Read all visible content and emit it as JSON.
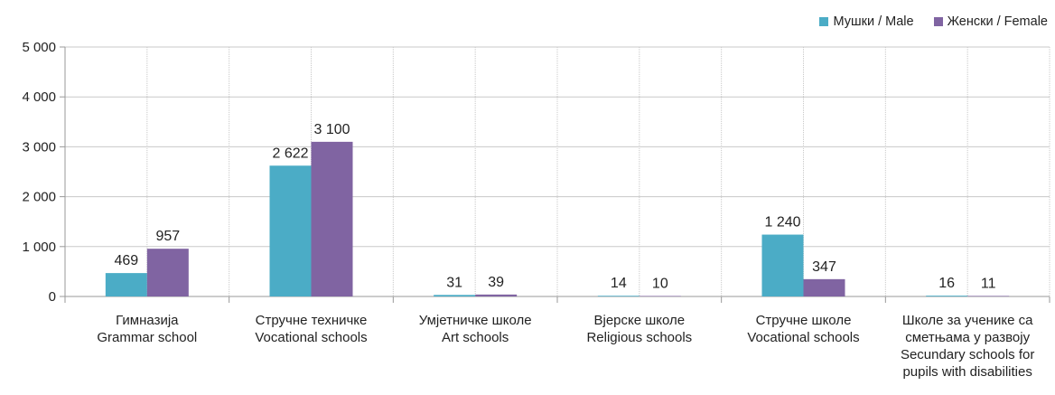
{
  "chart_data": {
    "type": "bar",
    "title": "",
    "xlabel": "",
    "ylabel": "",
    "ylim": [
      0,
      5000
    ],
    "yticks": [
      0,
      1000,
      2000,
      3000,
      4000,
      5000
    ],
    "ytick_labels": [
      "0",
      "1 000",
      "2 000",
      "3 000",
      "4 000",
      "5 000"
    ],
    "grid": true,
    "legend_position": "top-right",
    "categories": [
      [
        "Гимназија",
        "Grammar school"
      ],
      [
        "Стручне техничке",
        "Vocational schools"
      ],
      [
        "Умјетничке школе",
        "Art schools"
      ],
      [
        "Вјерске школе",
        "Religious schools"
      ],
      [
        "Стручне школе",
        "Vocational schools"
      ],
      [
        "Школе за ученике са",
        "сметњама у развоју",
        "Secundary schools for",
        "pupils with disabilities"
      ]
    ],
    "series": [
      {
        "name": "Мушки / Male",
        "color": "#4bacc6",
        "values": [
          469,
          2622,
          31,
          14,
          1240,
          16
        ],
        "labels": [
          "469",
          "2 622",
          "31",
          "14",
          "1 240",
          "16"
        ]
      },
      {
        "name": "Женски / Female",
        "color": "#8064a2",
        "values": [
          957,
          3100,
          39,
          10,
          347,
          11
        ],
        "labels": [
          "957",
          "3 100",
          "39",
          "10",
          "347",
          "11"
        ]
      }
    ]
  }
}
